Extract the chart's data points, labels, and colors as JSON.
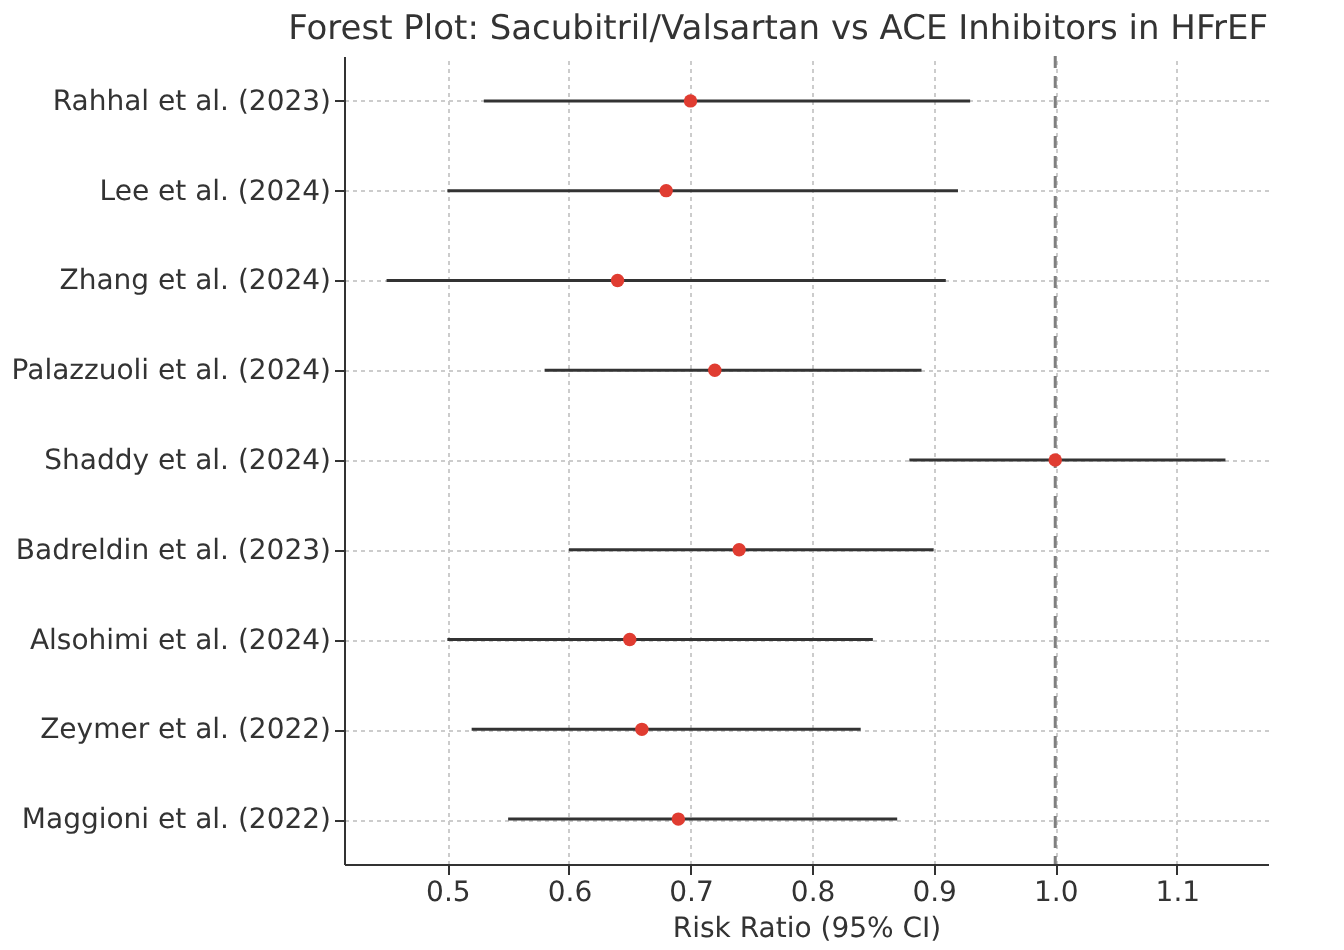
{
  "chart_data": {
    "type": "scatter",
    "title": "Forest Plot: Sacubitril/Valsartan vs ACE Inhibitors in HFrEF",
    "xlabel": "Risk Ratio (95% CI)",
    "orientation": "horizontal",
    "categories": [
      "Rahhal et al. (2023)",
      "Lee et al. (2024)",
      "Zhang et al. (2024)",
      "Palazzuoli et al. (2024)",
      "Shaddy et al. (2024)",
      "Badreldin et al. (2023)",
      "Alsohimi et al. (2024)",
      "Zeymer et al. (2022)",
      "Maggioni et al. (2022)"
    ],
    "values": [
      0.7,
      0.68,
      0.64,
      0.72,
      1.0,
      0.74,
      0.65,
      0.66,
      0.69
    ],
    "errors": [
      [
        0.53,
        0.93
      ],
      [
        0.5,
        0.92
      ],
      [
        0.45,
        0.91
      ],
      [
        0.58,
        0.89
      ],
      [
        0.88,
        1.14
      ],
      [
        0.6,
        0.9
      ],
      [
        0.5,
        0.85
      ],
      [
        0.52,
        0.84
      ],
      [
        0.55,
        0.87
      ]
    ],
    "color": "#e03c31",
    "marker": "circle",
    "xlim": [
      0.415,
      1.175
    ],
    "xticks": [
      0.5,
      0.6,
      0.7,
      0.8,
      0.9,
      {
        "value": 1.0,
        "label": "1.0"
      },
      1.1
    ],
    "grid": true,
    "ref_lines": [
      {
        "axis": "x",
        "value": 1.0,
        "color": "#808080",
        "line_style": "dashed"
      }
    ]
  }
}
